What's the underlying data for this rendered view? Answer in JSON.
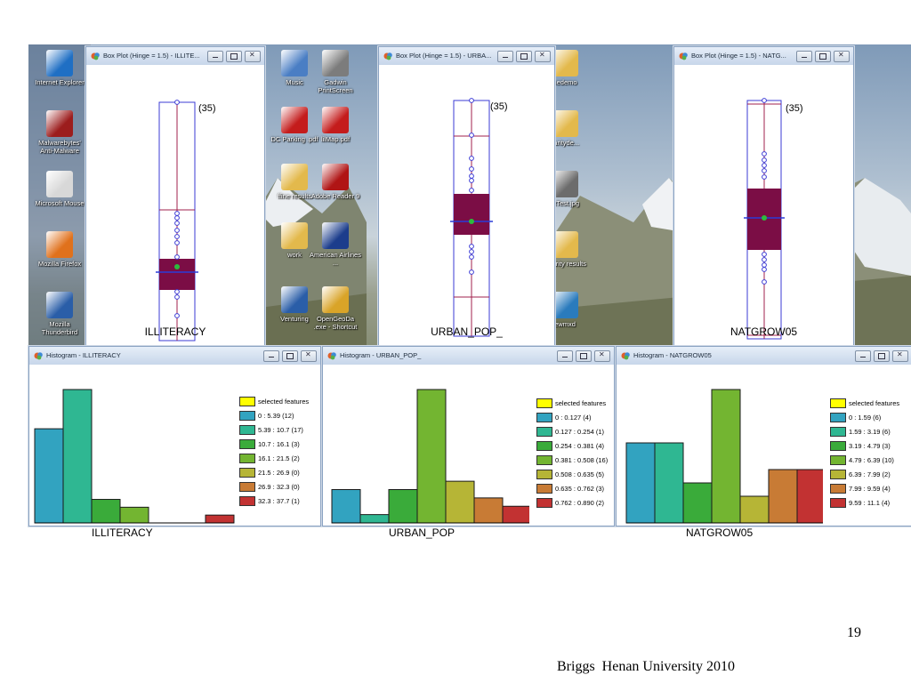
{
  "desktop": {
    "icons": [
      {
        "label": "Internet Explorer",
        "color": "#1f6fc4"
      },
      {
        "label": "Malwarebytes' Anti-Malware",
        "color": "#9c1d1d"
      },
      {
        "label": "Microsoft Mouse",
        "color": "#d8d8d8"
      },
      {
        "label": "Mozilla Firefox",
        "color": "#e0711c"
      },
      {
        "label": "Mozilla Thunderbird",
        "color": "#2a5ea8"
      },
      {
        "label": "Music",
        "color": "#4a7ec4"
      },
      {
        "label": "DC Parking .pdf",
        "color": "#c41c1c"
      },
      {
        "label": "ffine results",
        "color": "#e3b94c"
      },
      {
        "label": "work",
        "color": "#e3b94c"
      },
      {
        "label": "Venturing",
        "color": "#2a5ea8"
      },
      {
        "label": "Gadwin PrintScreen",
        "color": "#7c7c7c"
      },
      {
        "label": "lilMap.pdf",
        "color": "#c41c1c"
      },
      {
        "label": "Adobe Reader 9",
        "color": "#b01515"
      },
      {
        "label": "American Airlines ...",
        "color": "#1c3d8c"
      },
      {
        "label": "OpenGeoDa .exe - Shortcut",
        "color": "#d9a428"
      },
      {
        "label": "nedemo",
        "color": "#e3b94c"
      },
      {
        "label": "ilarityde...",
        "color": "#e3b94c"
      },
      {
        "label": "atTest.jpg",
        "color": "#6c6c6c"
      },
      {
        "label": "milarity results",
        "color": "#e3b94c"
      },
      {
        "label": "ewmxd",
        "color": "#2a7bbd"
      }
    ]
  },
  "boxplots": [
    {
      "title": "Box Plot (Hinge = 1.5) - ILLITE...",
      "variable": "ILLITERACY",
      "outlier_label": "(35)"
    },
    {
      "title": "Box Plot (Hinge = 1.5) - URBA...",
      "variable": "URBAN_POP_",
      "outlier_label": "(35)"
    },
    {
      "title": "Box Plot (Hinge = 1.5) - NATG...",
      "variable": "NATGROW05",
      "outlier_label": "(35)"
    }
  ],
  "histograms": [
    {
      "title": "Histogram - ILLITERACY",
      "variable": "ILLITERACY",
      "legend": [
        "selected features",
        "0 : 5.39 (12)",
        "5.39 : 10.7 (17)",
        "10.7 : 16.1 (3)",
        "16.1 : 21.5 (2)",
        "21.5 : 26.9 (0)",
        "26.9 : 32.3 (0)",
        "32.3 : 37.7 (1)"
      ]
    },
    {
      "title": "Histogram - URBAN_POP_",
      "variable": "URBAN_POP",
      "legend": [
        "selected features",
        "0 : 0.127 (4)",
        "0.127 : 0.254 (1)",
        "0.254 : 0.381 (4)",
        "0.381 : 0.508 (16)",
        "0.508 : 0.635 (5)",
        "0.635 : 0.762 (3)",
        "0.762 : 0.890 (2)"
      ]
    },
    {
      "title": "Histogram - NATGROW05",
      "variable": "NATGROW05",
      "legend": [
        "selected features",
        "0 : 1.59 (6)",
        "1.59 : 3.19 (6)",
        "3.19 : 4.79 (3)",
        "4.79 : 6.39 (10)",
        "6.39 : 7.99 (2)",
        "7.99 : 9.59 (4)",
        "9.59 : 11.1 (4)"
      ]
    }
  ],
  "bin_colors": [
    "#32a3c0",
    "#2fb792",
    "#3aab3a",
    "#73b531",
    "#b6b536",
    "#c87b35",
    "#c23232"
  ],
  "selected_color": "#ffff00",
  "box_color": "#7b0d45",
  "page_number": "19",
  "footer": "Briggs  Henan University 2010",
  "chart_data": [
    {
      "type": "box",
      "variable": "ILLITERACY",
      "outlier_label": "(35)"
    },
    {
      "type": "box",
      "variable": "URBAN_POP_",
      "outlier_label": "(35)"
    },
    {
      "type": "box",
      "variable": "NATGROW05",
      "outlier_label": "(35)"
    },
    {
      "type": "bar",
      "variable": "ILLITERACY",
      "categories": [
        "0 : 5.39",
        "5.39 : 10.7",
        "10.7 : 16.1",
        "16.1 : 21.5",
        "21.5 : 26.9",
        "26.9 : 32.3",
        "32.3 : 37.7"
      ],
      "values": [
        12,
        17,
        3,
        2,
        0,
        0,
        1
      ]
    },
    {
      "type": "bar",
      "variable": "URBAN_POP",
      "categories": [
        "0 : 0.127",
        "0.127 : 0.254",
        "0.254 : 0.381",
        "0.381 : 0.508",
        "0.508 : 0.635",
        "0.635 : 0.762",
        "0.762 : 0.890"
      ],
      "values": [
        4,
        1,
        4,
        16,
        5,
        3,
        2
      ]
    },
    {
      "type": "bar",
      "variable": "NATGROW05",
      "categories": [
        "0 : 1.59",
        "1.59 : 3.19",
        "3.19 : 4.79",
        "4.79 : 6.39",
        "6.39 : 7.99",
        "7.99 : 9.59",
        "9.59 : 11.1"
      ],
      "values": [
        6,
        6,
        3,
        10,
        2,
        4,
        4
      ]
    }
  ]
}
